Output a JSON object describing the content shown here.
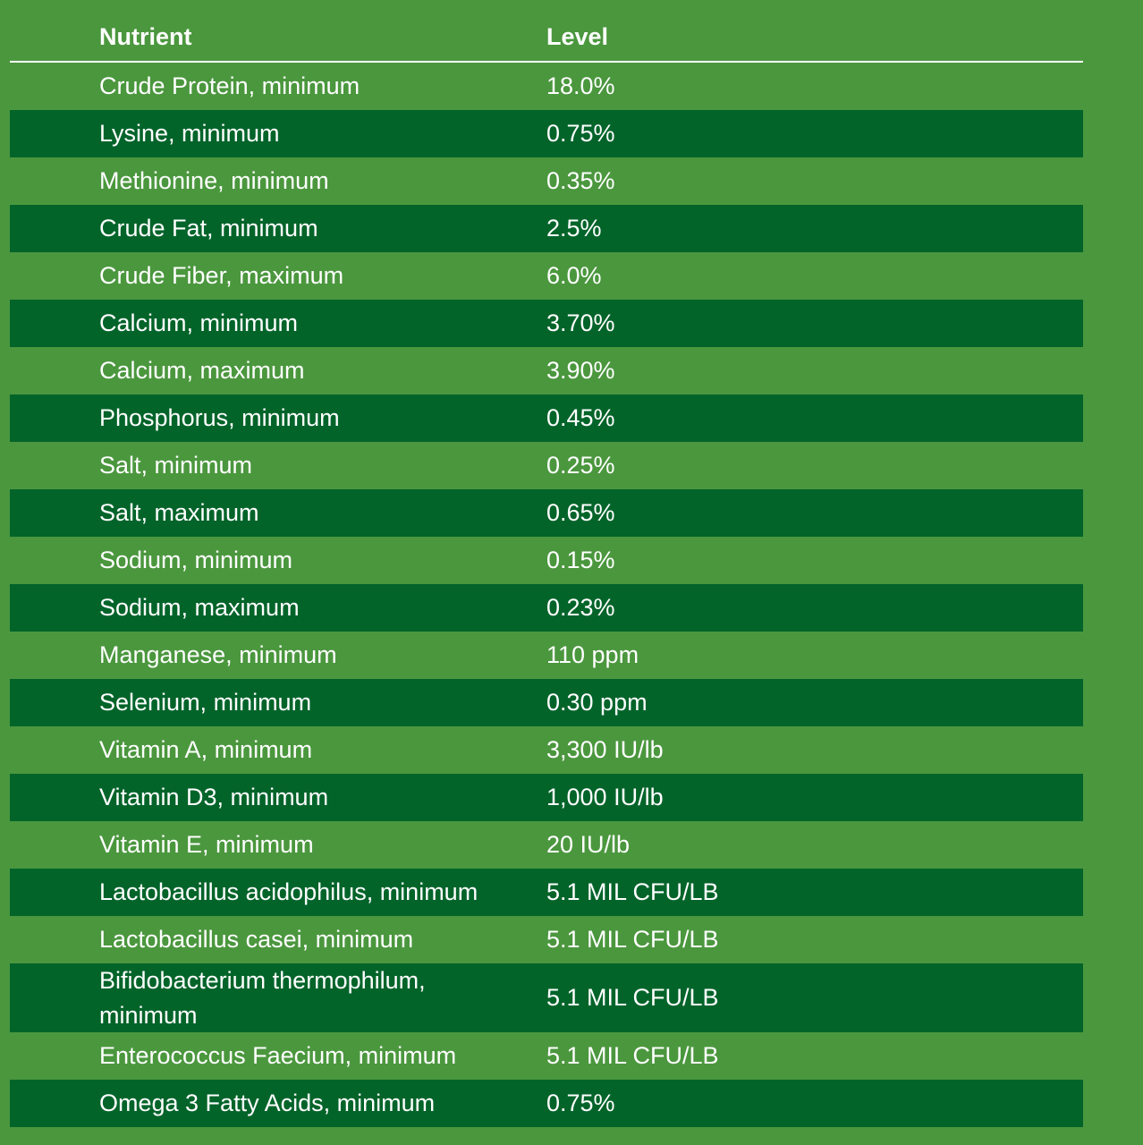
{
  "header": {
    "nutrient": "Nutrient",
    "level": "Level"
  },
  "rows": [
    {
      "nutrient": "Crude Protein, minimum",
      "level": "18.0%"
    },
    {
      "nutrient": "Lysine, minimum",
      "level": "0.75%"
    },
    {
      "nutrient": "Methionine, minimum",
      "level": "0.35%"
    },
    {
      "nutrient": "Crude Fat, minimum",
      "level": "2.5%"
    },
    {
      "nutrient": "Crude Fiber, maximum",
      "level": "6.0%"
    },
    {
      "nutrient": "Calcium, minimum",
      "level": "3.70%"
    },
    {
      "nutrient": "Calcium, maximum",
      "level": "3.90%"
    },
    {
      "nutrient": "Phosphorus, minimum",
      "level": "0.45%"
    },
    {
      "nutrient": "Salt, minimum",
      "level": "0.25%"
    },
    {
      "nutrient": "Salt, maximum",
      "level": "0.65%"
    },
    {
      "nutrient": "Sodium, minimum",
      "level": "0.15%"
    },
    {
      "nutrient": "Sodium, maximum",
      "level": "0.23%"
    },
    {
      "nutrient": "Manganese, minimum",
      "level": "110 ppm"
    },
    {
      "nutrient": "Selenium, minimum",
      "level": "0.30 ppm"
    },
    {
      "nutrient": "Vitamin A, minimum",
      "level": "3,300 IU/lb"
    },
    {
      "nutrient": "Vitamin D3, minimum",
      "level": "1,000 IU/lb"
    },
    {
      "nutrient": "Vitamin E, minimum",
      "level": "20 IU/lb"
    },
    {
      "nutrient": "Lactobacillus acidophilus, minimum",
      "level": "5.1 MIL CFU/LB"
    },
    {
      "nutrient": "Lactobacillus casei, minimum",
      "level": "5.1 MIL CFU/LB"
    },
    {
      "nutrient": "Bifidobacterium thermophilum, minimum",
      "level": "5.1 MIL CFU/LB"
    },
    {
      "nutrient": "Enterococcus Faecium, minimum",
      "level": "5.1 MIL CFU/LB"
    },
    {
      "nutrient": "Omega 3 Fatty Acids, minimum",
      "level": "0.75%"
    }
  ]
}
